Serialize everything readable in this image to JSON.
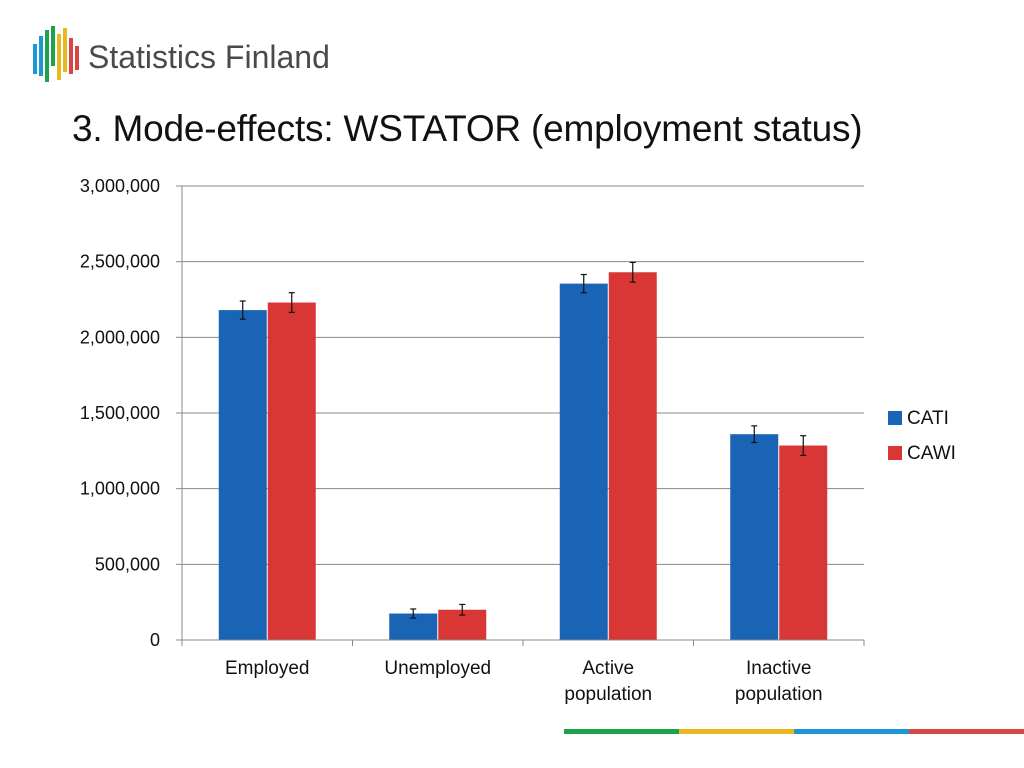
{
  "logo": {
    "text": "Statistics Finland",
    "icon": "statistics-finland-bars-logo"
  },
  "slide": {
    "title": "3. Mode-effects: WSTATOR (employment status)"
  },
  "colors": {
    "cati": "#1a64b5",
    "cawi": "#d93636",
    "grid": "#888888",
    "axis": "#888888",
    "footer": [
      "#1aa34a",
      "#e9b820",
      "#1b97d6",
      "#d94545"
    ]
  },
  "chart_data": {
    "type": "bar",
    "title": "",
    "xlabel": "",
    "ylabel": "",
    "categories": [
      "Employed",
      "Unemployed",
      "Active population",
      "Inactive population"
    ],
    "category_lines": [
      [
        "Employed"
      ],
      [
        "Unemployed"
      ],
      [
        "Active",
        "population"
      ],
      [
        "Inactive",
        "population"
      ]
    ],
    "series": [
      {
        "name": "CATI",
        "color": "#1a64b5",
        "values": [
          2180000,
          175000,
          2355000,
          1360000
        ],
        "error": [
          60000,
          30000,
          60000,
          55000
        ]
      },
      {
        "name": "CAWI",
        "color": "#d93636",
        "values": [
          2230000,
          200000,
          2430000,
          1285000
        ],
        "error": [
          65000,
          35000,
          65000,
          65000
        ]
      }
    ],
    "ylim": [
      0,
      3000000
    ],
    "yticks": [
      0,
      500000,
      1000000,
      1500000,
      2000000,
      2500000,
      3000000
    ],
    "ytick_labels": [
      "0",
      "500,000",
      "1,000,000",
      "1,500,000",
      "2,000,000",
      "2,500,000",
      "3,000,000"
    ],
    "grid": true,
    "error_bars": true,
    "legend": "right"
  }
}
